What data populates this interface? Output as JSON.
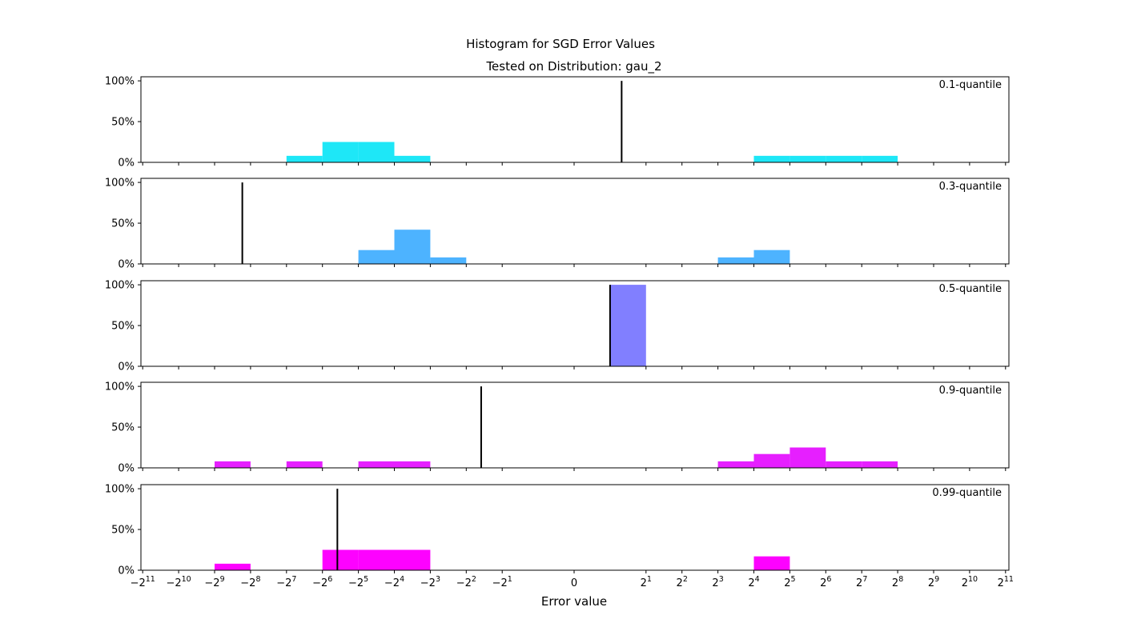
{
  "chart_data": {
    "type": "histogram",
    "title": "Histogram for SGD Error Values",
    "subtitle": "Tested on Distribution: gau_2",
    "xlabel": "Error value",
    "x_scale": "symmetric-log2",
    "x_ticks": [
      {
        "value": -2048,
        "base": "−2",
        "exp": "11"
      },
      {
        "value": -1024,
        "base": "−2",
        "exp": "10"
      },
      {
        "value": -512,
        "base": "−2",
        "exp": "9"
      },
      {
        "value": -256,
        "base": "−2",
        "exp": "8"
      },
      {
        "value": -128,
        "base": "−2",
        "exp": "7"
      },
      {
        "value": -64,
        "base": "−2",
        "exp": "6"
      },
      {
        "value": -32,
        "base": "−2",
        "exp": "5"
      },
      {
        "value": -16,
        "base": "−2",
        "exp": "4"
      },
      {
        "value": -8,
        "base": "−2",
        "exp": "3"
      },
      {
        "value": -4,
        "base": "−2",
        "exp": "2"
      },
      {
        "value": -2,
        "base": "−2",
        "exp": "1"
      },
      {
        "value": 0,
        "base": "0",
        "exp": ""
      },
      {
        "value": 2,
        "base": "2",
        "exp": "1"
      },
      {
        "value": 4,
        "base": "2",
        "exp": "2"
      },
      {
        "value": 8,
        "base": "2",
        "exp": "3"
      },
      {
        "value": 16,
        "base": "2",
        "exp": "4"
      },
      {
        "value": 32,
        "base": "2",
        "exp": "5"
      },
      {
        "value": 64,
        "base": "2",
        "exp": "6"
      },
      {
        "value": 128,
        "base": "2",
        "exp": "7"
      },
      {
        "value": 256,
        "base": "2",
        "exp": "8"
      },
      {
        "value": 512,
        "base": "2",
        "exp": "9"
      },
      {
        "value": 1024,
        "base": "2",
        "exp": "10"
      },
      {
        "value": 2048,
        "base": "2",
        "exp": "11"
      }
    ],
    "y_ticks": [
      {
        "value": 0,
        "label": "0%"
      },
      {
        "value": 50,
        "label": "50%"
      },
      {
        "value": 100,
        "label": "100%"
      }
    ],
    "ylim": [
      0,
      105
    ],
    "panels": [
      {
        "label": "0.1-quantile",
        "color": "#1ee7f7",
        "true_value": 1.25,
        "bins": [
          {
            "x0": -128,
            "x1": -64,
            "percent": 8
          },
          {
            "x0": -64,
            "x1": -32,
            "percent": 25
          },
          {
            "x0": -32,
            "x1": -16,
            "percent": 25
          },
          {
            "x0": -16,
            "x1": -8,
            "percent": 8
          },
          {
            "x0": 16,
            "x1": 32,
            "percent": 8
          },
          {
            "x0": 32,
            "x1": 64,
            "percent": 8
          },
          {
            "x0": 64,
            "x1": 128,
            "percent": 8
          },
          {
            "x0": 128,
            "x1": 256,
            "percent": 8
          }
        ]
      },
      {
        "label": "0.3-quantile",
        "color": "#4db3ff",
        "true_value": -300,
        "bins": [
          {
            "x0": -32,
            "x1": -16,
            "percent": 17
          },
          {
            "x0": -16,
            "x1": -8,
            "percent": 42
          },
          {
            "x0": -8,
            "x1": -4,
            "percent": 8
          },
          {
            "x0": 8,
            "x1": 16,
            "percent": 8
          },
          {
            "x0": 16,
            "x1": 32,
            "percent": 17
          }
        ]
      },
      {
        "label": "0.5-quantile",
        "color": "#817fff",
        "true_value": 1,
        "bins": [
          {
            "x0": 1,
            "x1": 2,
            "percent": 100
          }
        ]
      },
      {
        "label": "0.9-quantile",
        "color": "#e61fff",
        "true_value": -3,
        "bins": [
          {
            "x0": -512,
            "x1": -256,
            "percent": 8
          },
          {
            "x0": -128,
            "x1": -64,
            "percent": 8
          },
          {
            "x0": -32,
            "x1": -16,
            "percent": 8
          },
          {
            "x0": -16,
            "x1": -8,
            "percent": 8
          },
          {
            "x0": 8,
            "x1": 16,
            "percent": 8
          },
          {
            "x0": 16,
            "x1": 32,
            "percent": 17
          },
          {
            "x0": 32,
            "x1": 64,
            "percent": 25
          },
          {
            "x0": 64,
            "x1": 128,
            "percent": 8
          },
          {
            "x0": 128,
            "x1": 256,
            "percent": 8
          }
        ]
      },
      {
        "label": "0.99-quantile",
        "color": "#fd02ff",
        "true_value": -48,
        "bins": [
          {
            "x0": -512,
            "x1": -256,
            "percent": 8
          },
          {
            "x0": -64,
            "x1": -32,
            "percent": 25
          },
          {
            "x0": -32,
            "x1": -16,
            "percent": 25
          },
          {
            "x0": -16,
            "x1": -8,
            "percent": 25
          },
          {
            "x0": 16,
            "x1": 32,
            "percent": 17
          }
        ]
      }
    ]
  }
}
